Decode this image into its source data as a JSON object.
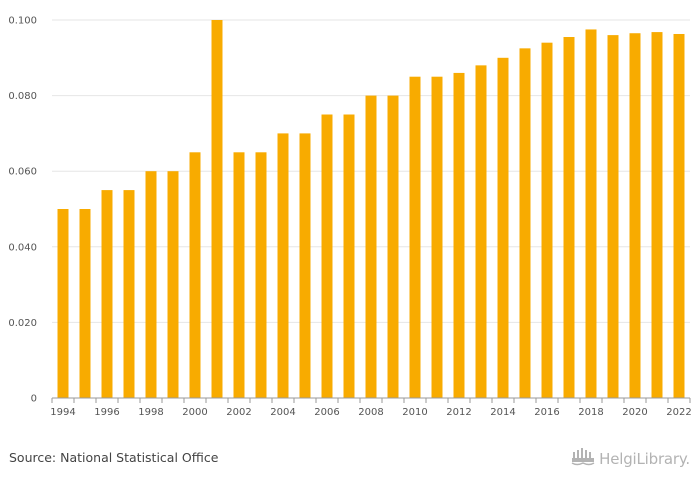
{
  "chart_data": {
    "type": "bar",
    "categories": [
      "1994",
      "1995",
      "1996",
      "1997",
      "1998",
      "1999",
      "2000",
      "2001",
      "2002",
      "2003",
      "2004",
      "2005",
      "2006",
      "2007",
      "2008",
      "2009",
      "2010",
      "2011",
      "2012",
      "2013",
      "2014",
      "2015",
      "2016",
      "2017",
      "2018",
      "2019",
      "2020",
      "2021",
      "2022"
    ],
    "values": [
      0.05,
      0.05,
      0.055,
      0.055,
      0.06,
      0.06,
      0.065,
      0.1,
      0.065,
      0.065,
      0.07,
      0.07,
      0.075,
      0.075,
      0.08,
      0.08,
      0.085,
      0.085,
      0.086,
      0.088,
      0.09,
      0.0925,
      0.094,
      0.0955,
      0.0975,
      0.096,
      0.0965,
      0.0968,
      0.0963
    ],
    "x_tick_labels": [
      "1994",
      "1996",
      "1998",
      "2000",
      "2002",
      "2004",
      "2006",
      "2008",
      "2010",
      "2012",
      "2014",
      "2016",
      "2018",
      "2020",
      "2022"
    ],
    "y_tick_labels": [
      "0",
      "0.020",
      "0.040",
      "0.060",
      "0.080",
      "0.100"
    ],
    "y_ticks": [
      0,
      0.02,
      0.04,
      0.06,
      0.08,
      0.1
    ],
    "ylim": [
      0,
      0.1
    ],
    "title": "",
    "xlabel": "",
    "ylabel": "",
    "grid": true,
    "bar_color": "#f8ab00",
    "grid_color": "#e6e6e6"
  },
  "footer": {
    "source": "Source: National Statistical Office",
    "logo_text": "HelgiLibrary."
  },
  "icons": {
    "logo": "helgi-library-logo-icon"
  }
}
